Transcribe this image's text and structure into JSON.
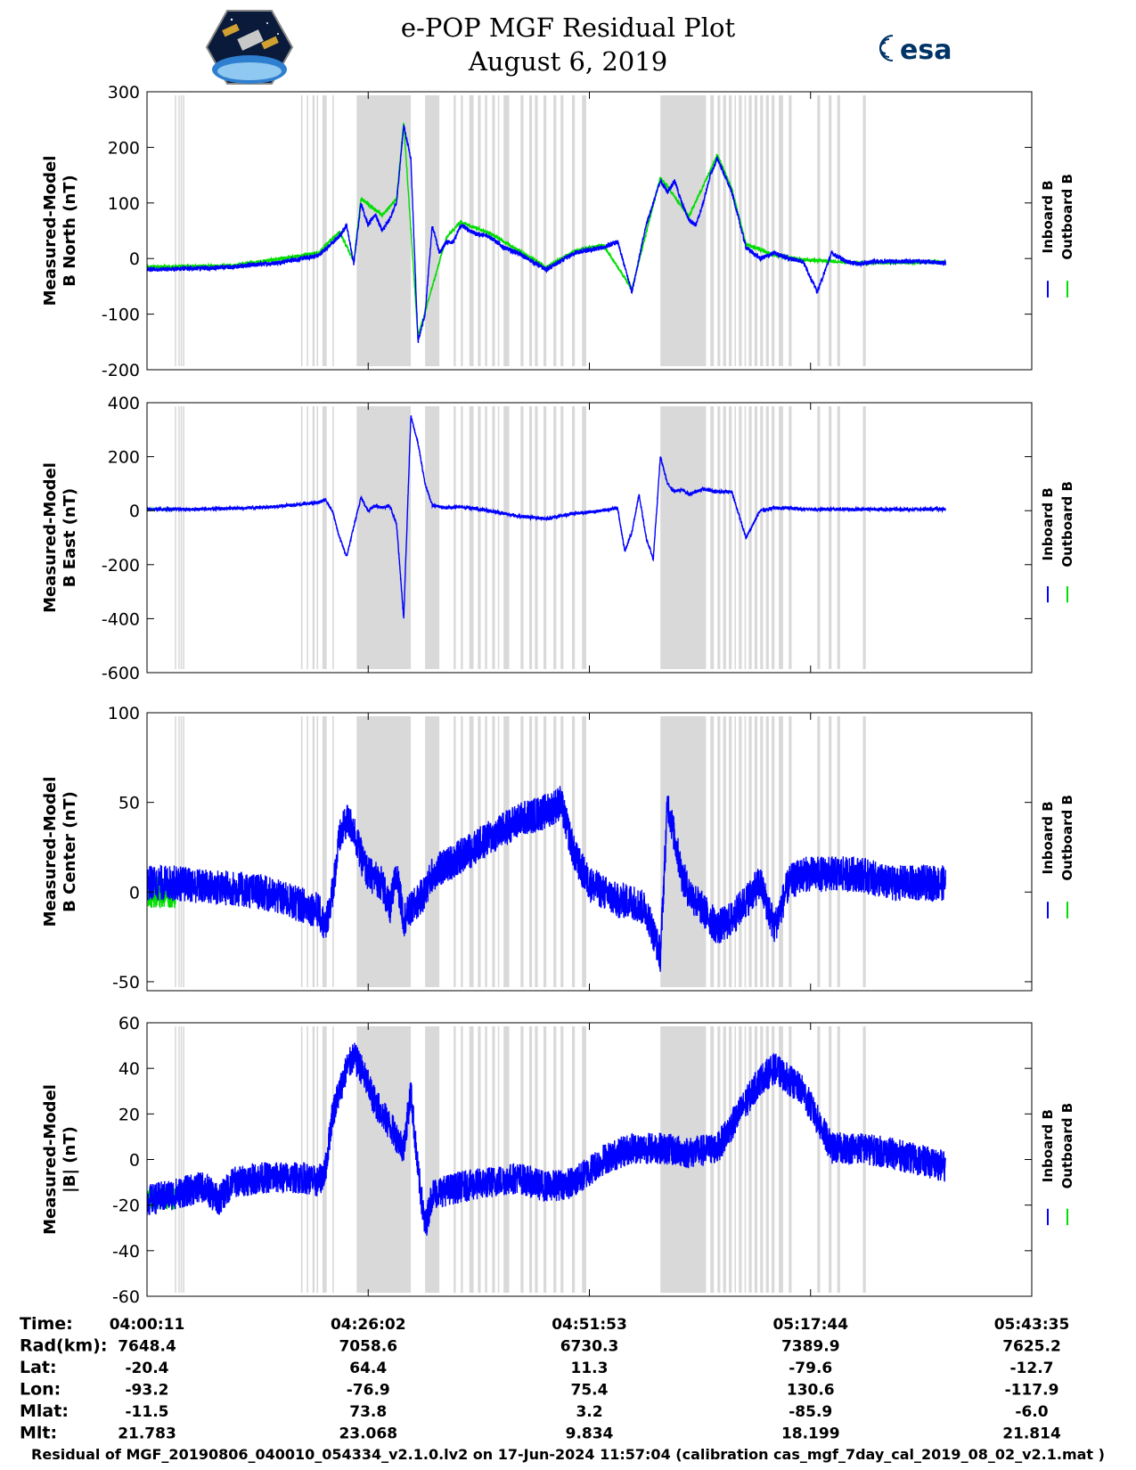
{
  "title": "e-POP MGF Residual Plot",
  "subtitle": "August 6, 2019",
  "logos": {
    "left": "cassiope-mission-logo",
    "right": "esa-logo",
    "right_text": "esa"
  },
  "colors": {
    "inboard": "#0000ff",
    "outboard": "#00dd00",
    "gap_shading": "#d9d9d9"
  },
  "chart_data": [
    {
      "type": "line",
      "ylabel": [
        "Measured-Model",
        "B North (nT)"
      ],
      "ylim": [
        -200,
        300
      ],
      "yticks": [
        -200,
        -100,
        0,
        100,
        200,
        300
      ],
      "legend": [
        "Inboard B",
        "Outboard B"
      ],
      "legend_position": "right",
      "series": [
        {
          "name": "Inboard B",
          "color": "#0000ff",
          "x": [
            0,
            300,
            600,
            900,
            1200,
            1350,
            1400,
            1450,
            1500,
            1550,
            1600,
            1650,
            1700,
            1750,
            1800,
            1850,
            1900,
            1950,
            2000,
            2050,
            2100,
            2150,
            2200,
            2300,
            2400,
            2500,
            2600,
            2700,
            2800,
            2900,
            3000,
            3100,
            3200,
            3300,
            3400,
            3500,
            3600,
            3650,
            3700,
            3750,
            3800,
            3850,
            3900,
            3950,
            4000,
            4100,
            4200,
            4300,
            4400,
            4500,
            4600,
            4700,
            4800,
            4900,
            5000,
            5100,
            5200,
            5400,
            5600
          ],
          "y": [
            -20,
            -18,
            -15,
            -8,
            5,
            40,
            60,
            -10,
            100,
            60,
            80,
            50,
            70,
            100,
            240,
            180,
            -150,
            -100,
            60,
            10,
            30,
            30,
            60,
            45,
            40,
            20,
            10,
            -5,
            -20,
            -5,
            10,
            15,
            20,
            30,
            -60,
            60,
            140,
            120,
            140,
            100,
            70,
            60,
            100,
            150,
            180,
            120,
            20,
            0,
            10,
            0,
            -5,
            -60,
            10,
            -5,
            -10,
            -5,
            -5,
            -5,
            -8
          ],
          "noise": 4
        },
        {
          "name": "Outboard B",
          "color": "#00dd00",
          "x": [
            0,
            100,
            600,
            1200,
            1350,
            1450,
            1500,
            1650,
            1750,
            1800,
            1900,
            2100,
            2200,
            2400,
            2600,
            2800,
            3000,
            3200,
            3400,
            3600,
            3800,
            4000,
            4100,
            4200,
            4400,
            4600,
            5000,
            5600
          ],
          "y": [
            -15,
            -15,
            -13,
            10,
            48,
            -5,
            108,
            78,
            108,
            245,
            -140,
            38,
            66,
            46,
            16,
            -16,
            14,
            24,
            -55,
            146,
            76,
            186,
            126,
            26,
            6,
            -2,
            -8,
            -6
          ],
          "noise": 3
        }
      ]
    },
    {
      "type": "line",
      "ylabel": [
        "Measured-Model",
        "B East (nT)"
      ],
      "ylim": [
        -600,
        400
      ],
      "yticks": [
        -600,
        -400,
        -200,
        0,
        200,
        400
      ],
      "legend": [
        "Inboard B",
        "Outboard B"
      ],
      "legend_position": "right",
      "series": [
        {
          "name": "Inboard B",
          "color": "#0000ff",
          "x": [
            0,
            300,
            600,
            900,
            1200,
            1250,
            1300,
            1350,
            1400,
            1450,
            1500,
            1550,
            1600,
            1650,
            1700,
            1750,
            1800,
            1850,
            1900,
            1950,
            2000,
            2100,
            2200,
            2400,
            2600,
            2800,
            3000,
            3200,
            3300,
            3350,
            3400,
            3450,
            3500,
            3550,
            3600,
            3650,
            3700,
            3750,
            3800,
            3900,
            4000,
            4100,
            4200,
            4300,
            4400,
            4500,
            4600,
            4800,
            5200,
            5600
          ],
          "y": [
            5,
            5,
            8,
            15,
            30,
            40,
            0,
            -100,
            -170,
            -60,
            50,
            0,
            20,
            10,
            20,
            -50,
            -400,
            350,
            250,
            100,
            20,
            10,
            15,
            0,
            -20,
            -30,
            -10,
            0,
            10,
            -150,
            -80,
            60,
            -100,
            -180,
            200,
            100,
            70,
            80,
            60,
            80,
            70,
            70,
            -100,
            0,
            10,
            10,
            5,
            5,
            5,
            5
          ],
          "noise": 6
        },
        {
          "name": "Outboard B",
          "color": "#00dd00",
          "x": [
            0,
            100,
            200
          ],
          "y": [
            5,
            5,
            5
          ],
          "noise": 3
        }
      ]
    },
    {
      "type": "line",
      "ylabel": [
        "Measured-Model",
        "B Center (nT)"
      ],
      "ylim": [
        -55,
        100
      ],
      "yticks": [
        -50,
        0,
        50,
        100
      ],
      "legend": [
        "Inboard B",
        "Outboard B"
      ],
      "legend_position": "right",
      "series": [
        {
          "name": "Inboard B",
          "color": "#0000ff",
          "x": [
            0,
            200,
            400,
            600,
            800,
            1000,
            1200,
            1250,
            1300,
            1350,
            1400,
            1450,
            1500,
            1550,
            1600,
            1650,
            1700,
            1750,
            1800,
            1850,
            1900,
            1950,
            2000,
            2200,
            2400,
            2600,
            2800,
            2900,
            3000,
            3100,
            3200,
            3300,
            3400,
            3500,
            3600,
            3650,
            3700,
            3750,
            3800,
            3900,
            4000,
            4100,
            4200,
            4300,
            4400,
            4500,
            4600,
            4800,
            5000,
            5200,
            5400,
            5600
          ],
          "y": [
            5,
            5,
            3,
            2,
            0,
            -5,
            -10,
            -20,
            0,
            30,
            40,
            35,
            20,
            10,
            8,
            5,
            -10,
            10,
            -15,
            -10,
            -5,
            0,
            10,
            20,
            30,
            40,
            45,
            50,
            20,
            5,
            0,
            -5,
            -5,
            -10,
            -35,
            50,
            30,
            10,
            0,
            -10,
            -20,
            -15,
            -5,
            5,
            -20,
            5,
            10,
            10,
            10,
            5,
            5,
            5
          ],
          "noise": 10
        },
        {
          "name": "Outboard B",
          "color": "#00dd00",
          "x": [
            0,
            100,
            200
          ],
          "y": [
            0,
            0,
            0
          ],
          "noise": 9
        }
      ]
    },
    {
      "type": "line",
      "ylabel": [
        "Measured-Model",
        "|B| (nT)"
      ],
      "ylim": [
        -60,
        60
      ],
      "yticks": [
        -60,
        -40,
        -20,
        0,
        20,
        40,
        60
      ],
      "legend": [
        "Inboard B",
        "Outboard B"
      ],
      "legend_position": "right",
      "series": [
        {
          "name": "Inboard B",
          "color": "#0000ff",
          "x": [
            0,
            200,
            400,
            500,
            600,
            800,
            1000,
            1100,
            1200,
            1250,
            1300,
            1400,
            1450,
            1500,
            1600,
            1700,
            1800,
            1850,
            1900,
            1950,
            2000,
            2200,
            2400,
            2600,
            2800,
            3000,
            3200,
            3400,
            3600,
            3800,
            4000,
            4200,
            4300,
            4400,
            4600,
            4800,
            5000,
            5200,
            5400,
            5600
          ],
          "y": [
            -18,
            -15,
            -12,
            -18,
            -10,
            -8,
            -8,
            -8,
            -10,
            -5,
            20,
            40,
            45,
            40,
            25,
            15,
            5,
            30,
            -5,
            -30,
            -15,
            -12,
            -10,
            -8,
            -12,
            -10,
            0,
            5,
            5,
            3,
            5,
            25,
            35,
            40,
            30,
            5,
            5,
            3,
            0,
            -3
          ],
          "noise": 7
        },
        {
          "name": "Outboard B",
          "color": "#00dd00",
          "x": [
            0,
            100,
            200
          ],
          "y": [
            -17,
            -17,
            -17
          ],
          "noise": 5
        }
      ]
    }
  ],
  "gap_bands": [
    [
      195,
      205
    ],
    [
      220,
      228
    ],
    [
      236,
      244
    ],
    [
      252,
      262
    ],
    [
      1080,
      1090
    ],
    [
      1120,
      1130
    ],
    [
      1160,
      1175
    ],
    [
      1190,
      1200
    ],
    [
      1230,
      1260
    ],
    [
      1300,
      1310
    ],
    [
      1470,
      1850
    ],
    [
      1950,
      2050
    ],
    [
      2150,
      2165
    ],
    [
      2200,
      2215
    ],
    [
      2260,
      2290
    ],
    [
      2320,
      2340
    ],
    [
      2370,
      2385
    ],
    [
      2420,
      2440
    ],
    [
      2460,
      2470
    ],
    [
      2500,
      2540
    ],
    [
      2620,
      2640
    ],
    [
      2680,
      2700
    ],
    [
      2720,
      2740
    ],
    [
      2780,
      2800
    ],
    [
      2850,
      2870
    ],
    [
      2900,
      2920
    ],
    [
      2980,
      3000
    ],
    [
      3050,
      3080
    ],
    [
      3600,
      3920
    ],
    [
      3950,
      3975
    ],
    [
      4000,
      4020
    ],
    [
      4040,
      4060
    ],
    [
      4080,
      4100
    ],
    [
      4120,
      4130
    ],
    [
      4150,
      4170
    ],
    [
      4190,
      4200
    ],
    [
      4220,
      4240
    ],
    [
      4260,
      4280
    ],
    [
      4300,
      4320
    ],
    [
      4340,
      4360
    ],
    [
      4380,
      4400
    ],
    [
      4430,
      4460
    ],
    [
      4500,
      4520
    ],
    [
      4700,
      4720
    ],
    [
      4780,
      4800
    ],
    [
      4840,
      4860
    ],
    [
      5020,
      5040
    ]
  ],
  "x_axis": {
    "range_seconds": [
      0,
      6204
    ],
    "tick_seconds": [
      0,
      1551,
      3102,
      4653,
      6204
    ],
    "rows": [
      {
        "label": "Time:",
        "values": [
          "04:00:11",
          "04:26:02",
          "04:51:53",
          "05:17:44",
          "05:43:35"
        ]
      },
      {
        "label": "Rad(km):",
        "values": [
          "7648.4",
          "7058.6",
          "6730.3",
          "7389.9",
          "7625.2"
        ]
      },
      {
        "label": "Lat:",
        "values": [
          "-20.4",
          "64.4",
          "11.3",
          "-79.6",
          "-12.7"
        ]
      },
      {
        "label": "Lon:",
        "values": [
          "-93.2",
          "-76.9",
          "75.4",
          "130.6",
          "-117.9"
        ]
      },
      {
        "label": "Mlat:",
        "values": [
          "-11.5",
          "73.8",
          "3.2",
          "-85.9",
          "-6.0"
        ]
      },
      {
        "label": "Mlt:",
        "values": [
          "21.783",
          "23.068",
          "9.834",
          "18.199",
          "21.814"
        ]
      }
    ]
  },
  "footer": "Residual of MGF_20190806_040010_054334_v2.1.0.lv2 on 17-Jun-2024 11:57:04 (calibration cas_mgf_7day_cal_2019_08_02_v2.1.mat )"
}
